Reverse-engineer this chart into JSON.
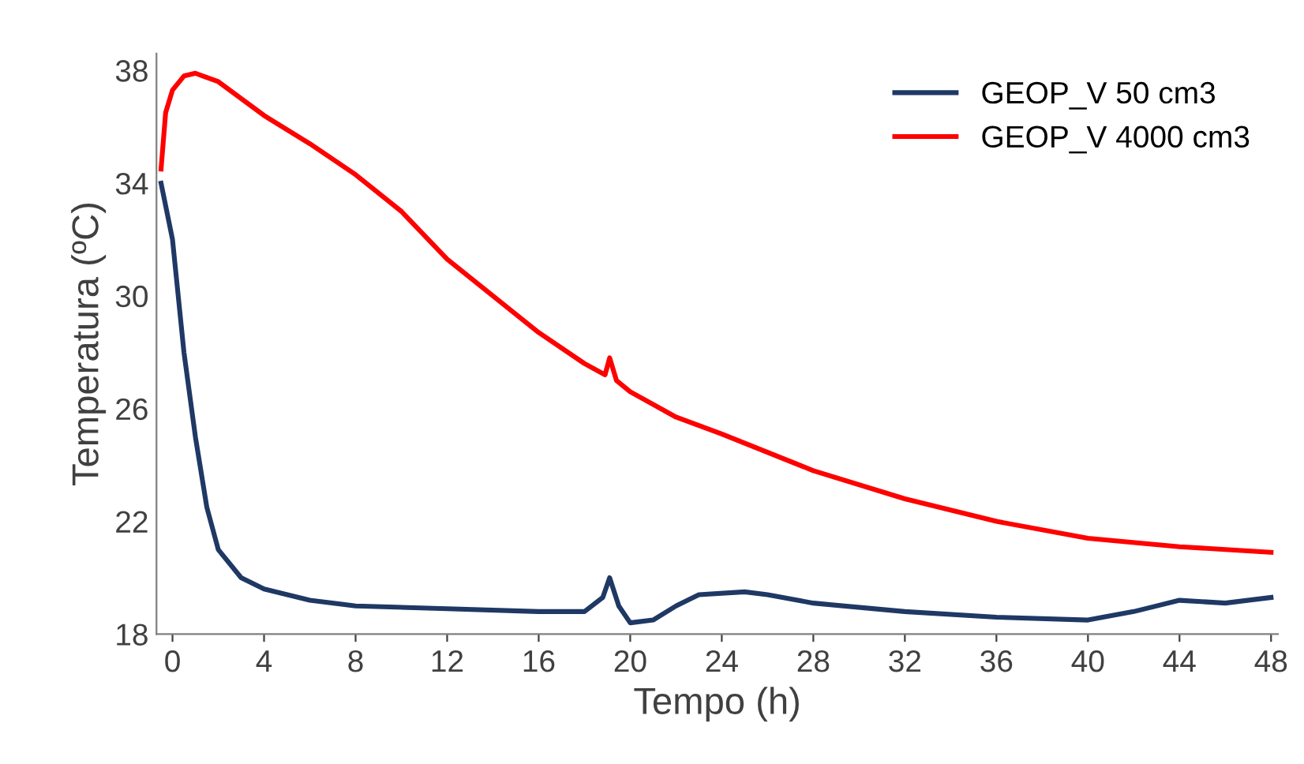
{
  "chart_data": {
    "type": "line",
    "xlabel": "Tempo (h)",
    "ylabel": "Temperatura (ºC)",
    "xlim": [
      -0.7,
      48.3
    ],
    "ylim": [
      18,
      38.6
    ],
    "xticks": [
      0,
      4,
      8,
      12,
      16,
      20,
      24,
      28,
      32,
      36,
      40,
      44,
      48
    ],
    "yticks": [
      18,
      22,
      26,
      30,
      34,
      38
    ],
    "grid": false,
    "legend": "top right",
    "series": [
      {
        "name": "GEOP_V 50 cm3",
        "color": "#1f3864",
        "x": [
          -0.5,
          0,
          0.5,
          1,
          1.5,
          2,
          3,
          4,
          6,
          8,
          12,
          16,
          18,
          18.8,
          19.1,
          19.5,
          20,
          21,
          22,
          23,
          25,
          26,
          28,
          32,
          36,
          40,
          42,
          44,
          46,
          48
        ],
        "values": [
          34,
          32,
          28,
          25,
          22.5,
          21,
          20,
          19.6,
          19.2,
          19.0,
          18.9,
          18.8,
          18.8,
          19.3,
          20.0,
          19.0,
          18.4,
          18.5,
          19.0,
          19.4,
          19.5,
          19.4,
          19.1,
          18.8,
          18.6,
          18.5,
          18.8,
          19.2,
          19.1,
          19.3
        ]
      },
      {
        "name": "GEOP_V 4000 cm3",
        "color": "#ff0000",
        "x": [
          -0.5,
          -0.3,
          0,
          0.5,
          1,
          2,
          4,
          6,
          8,
          10,
          12,
          14,
          16,
          18,
          18.9,
          19.1,
          19.4,
          20,
          22,
          24,
          28,
          32,
          36,
          40,
          44,
          48
        ],
        "values": [
          34.5,
          36.5,
          37.3,
          37.8,
          37.9,
          37.6,
          36.4,
          35.4,
          34.3,
          33,
          31.3,
          30,
          28.7,
          27.6,
          27.2,
          27.8,
          27,
          26.6,
          25.7,
          25.1,
          23.8,
          22.8,
          22.0,
          21.4,
          21.1,
          20.9
        ]
      }
    ]
  }
}
